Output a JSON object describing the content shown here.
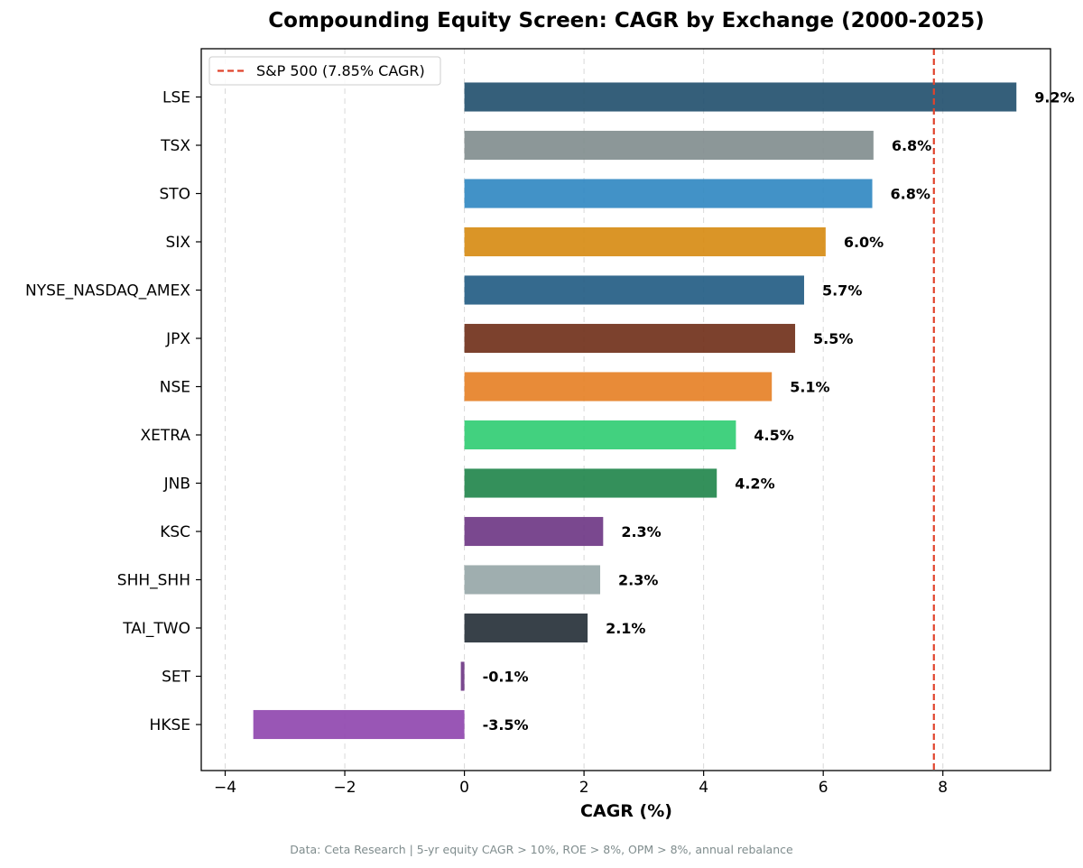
{
  "chart_data": {
    "type": "bar",
    "orientation": "horizontal",
    "title": "Compounding Equity Screen: CAGR by Exchange (2000-2025)",
    "xlabel": "CAGR (%)",
    "ylabel": "",
    "xlim": [
      -4.4,
      9.8
    ],
    "x_ticks": [
      -4,
      -2,
      0,
      2,
      4,
      6,
      8
    ],
    "x_tick_labels": [
      "−4",
      "−2",
      "0",
      "2",
      "4",
      "6",
      "8"
    ],
    "grid": "vertical dashed",
    "categories": [
      "LSE",
      "TSX",
      "STO",
      "SIX",
      "NYSE_NASDAQ_AMEX",
      "JPX",
      "NSE",
      "XETRA",
      "JNB",
      "KSC",
      "SHH_SHH",
      "TAI_TWO",
      "SET",
      "HKSE"
    ],
    "values": [
      9.23,
      6.84,
      6.82,
      6.04,
      5.68,
      5.53,
      5.14,
      4.54,
      4.22,
      2.32,
      2.27,
      2.06,
      -0.06,
      -3.53
    ],
    "value_labels": [
      "9.2%",
      "6.8%",
      "6.8%",
      "6.0%",
      "5.7%",
      "5.5%",
      "5.1%",
      "4.5%",
      "4.2%",
      "2.3%",
      "2.3%",
      "2.1%",
      "-0.1%",
      "-3.5%"
    ],
    "colors": [
      "#1f4e6b",
      "#7f8c8d",
      "#2e86c1",
      "#d68910",
      "#1f5a82",
      "#6e2c16",
      "#e67e22",
      "#2ecc71",
      "#1e8449",
      "#6c3483",
      "#95a5a6",
      "#222c35",
      "#6c3483",
      "#8e44ad"
    ],
    "reference_line": {
      "value": 7.85,
      "label": "S&P 500 (7.85% CAGR)",
      "color": "#e0442c",
      "style": "dashed"
    },
    "legend_placement": "top-left"
  },
  "footnote": "Data: Ceta Research | 5-yr equity CAGR > 10%, ROE > 8%, OPM > 8%, annual rebalance"
}
